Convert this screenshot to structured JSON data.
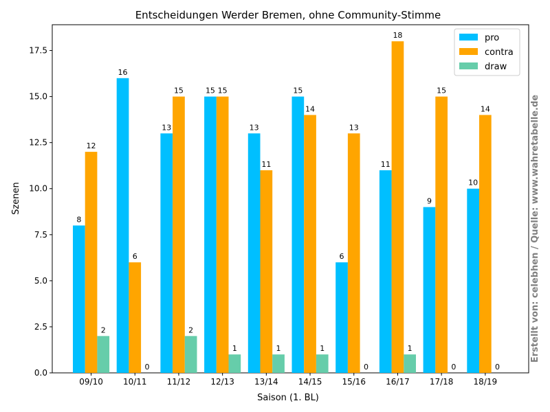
{
  "chart_data": {
    "type": "bar",
    "title": "Entscheidungen Werder Bremen, ohne Community-Stimme",
    "xlabel": "Saison (1. BL)",
    "ylabel": "Szenen",
    "categories": [
      "09/10",
      "10/11",
      "11/12",
      "12/13",
      "13/14",
      "14/15",
      "15/16",
      "16/17",
      "17/18",
      "18/19"
    ],
    "series": [
      {
        "name": "pro",
        "color": "#00bfff",
        "values": [
          8,
          16,
          13,
          15,
          13,
          15,
          6,
          11,
          9,
          10
        ]
      },
      {
        "name": "contra",
        "color": "#ffa500",
        "values": [
          12,
          6,
          15,
          15,
          11,
          14,
          13,
          18,
          15,
          14
        ]
      },
      {
        "name": "draw",
        "color": "#66cdaa",
        "values": [
          2,
          0,
          2,
          1,
          1,
          1,
          0,
          1,
          0,
          0
        ]
      }
    ],
    "ylim": [
      0,
      18.9
    ],
    "yticks": [
      "0.0",
      "2.5",
      "5.0",
      "7.5",
      "10.0",
      "12.5",
      "15.0",
      "17.5"
    ],
    "grid": false,
    "legend": "top-right",
    "credit": "Erstellt von: celebhen / Quelle: www.wahretabelle.de"
  }
}
